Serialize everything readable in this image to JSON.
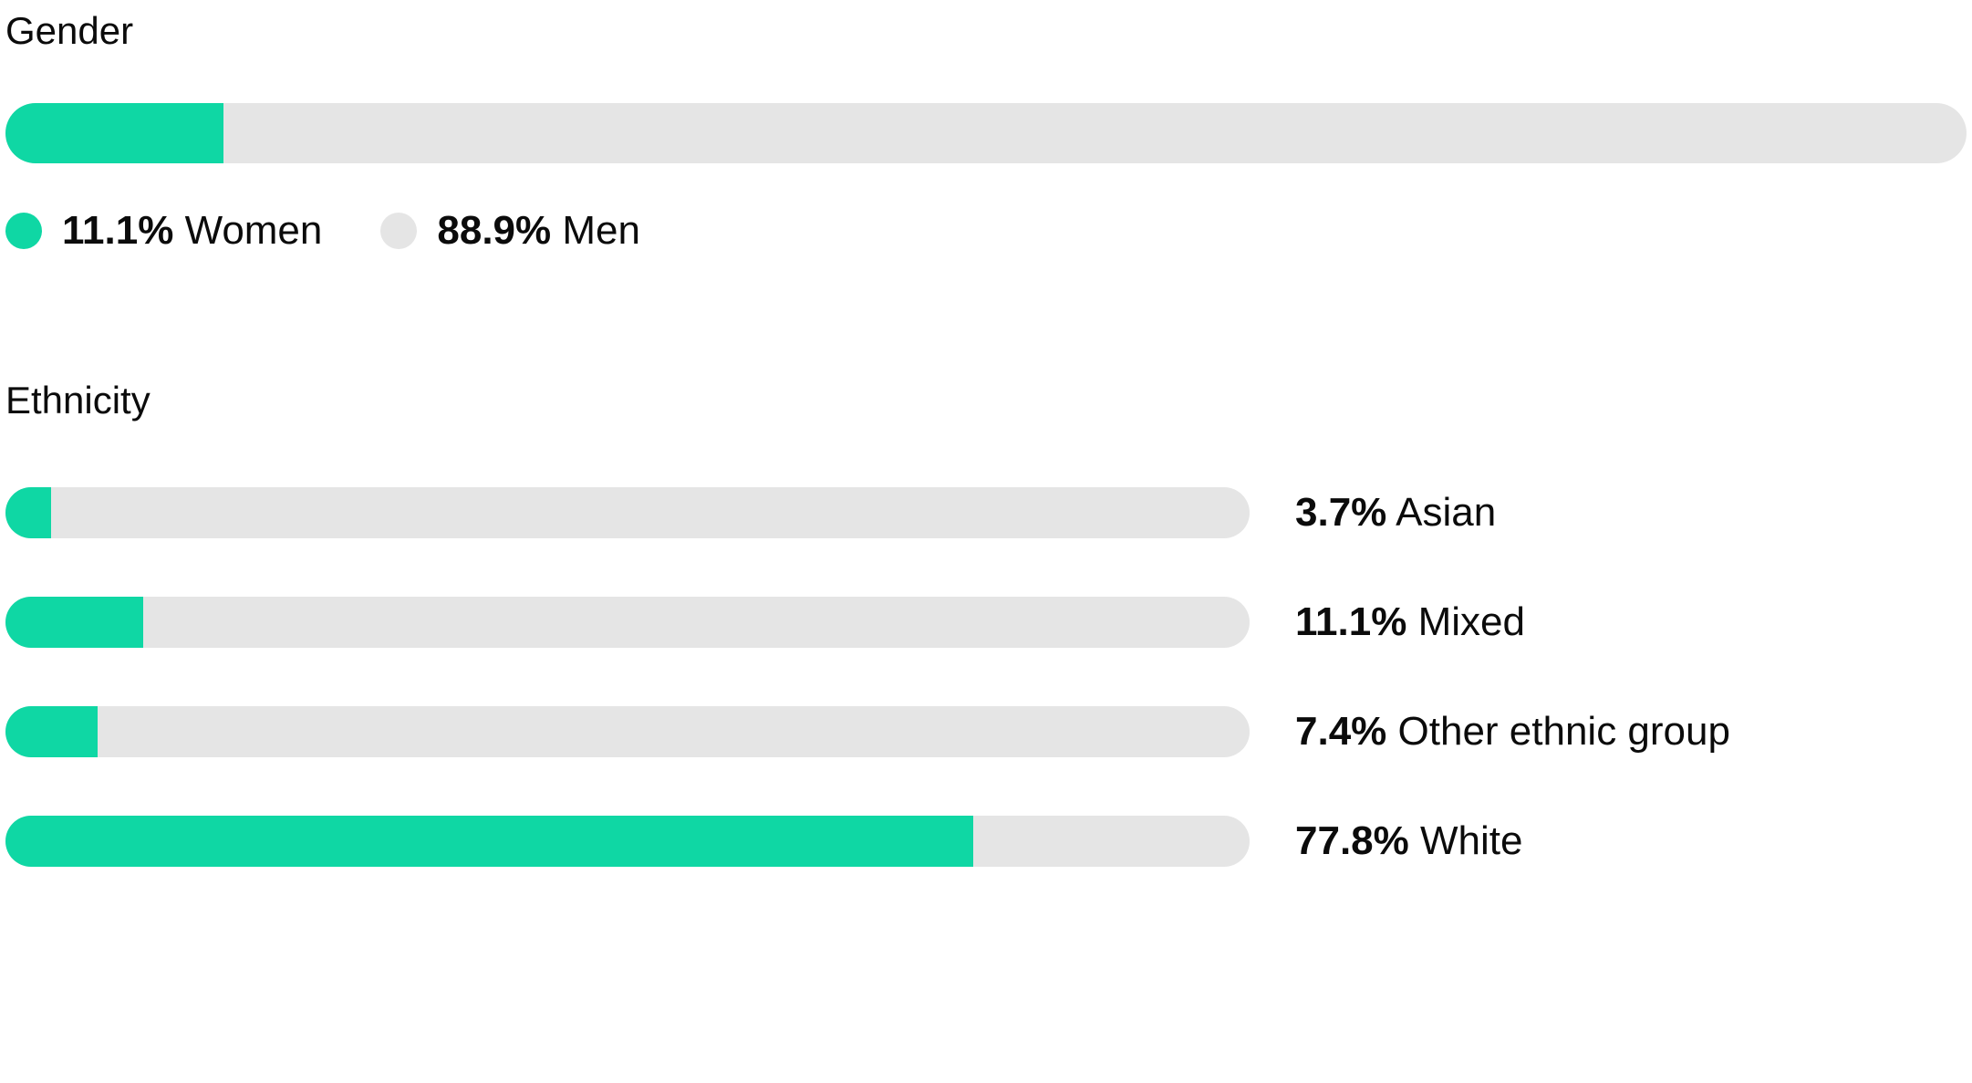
{
  "colors": {
    "accent": "#0fd7a4",
    "track": "#e5e5e5",
    "text": "#0b0b0b"
  },
  "chart_data": [
    {
      "type": "bar",
      "title": "Gender",
      "layout": "single-stacked-horizontal-bar",
      "legend_position": "below",
      "segments": [
        {
          "pct_text": "11.1%",
          "label": "Women",
          "value": 11.1,
          "color_role": "accent"
        },
        {
          "pct_text": "88.9%",
          "label": "Men",
          "value": 88.9,
          "color_role": "track"
        }
      ]
    },
    {
      "type": "bar",
      "title": "Ethnicity",
      "layout": "horizontal-bars-with-right-labels",
      "xlim": [
        0,
        100
      ],
      "rows": [
        {
          "pct_text": "3.7%",
          "label": "Asian",
          "value": 3.7
        },
        {
          "pct_text": "11.1%",
          "label": "Mixed",
          "value": 11.1
        },
        {
          "pct_text": "7.4%",
          "label": "Other ethnic group",
          "value": 7.4
        },
        {
          "pct_text": "77.8%",
          "label": "White",
          "value": 77.8
        }
      ]
    }
  ]
}
